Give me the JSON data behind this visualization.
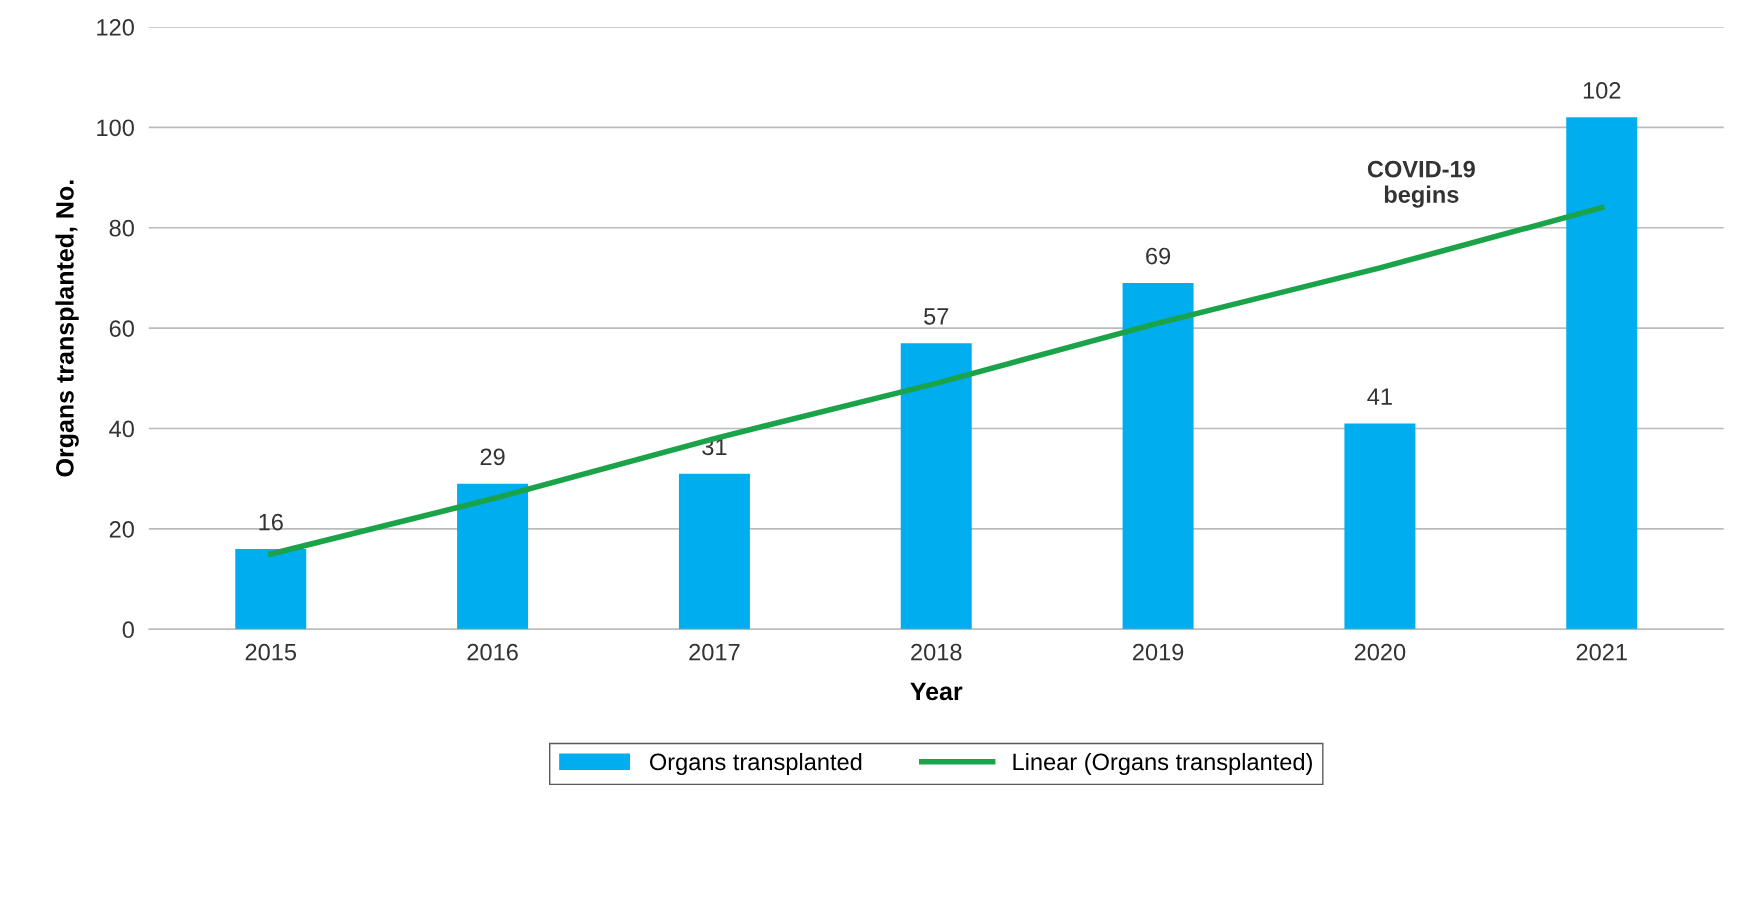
{
  "chart_data": {
    "type": "bar",
    "xlabel": "Year",
    "ylabel": "Organs transplanted, No.",
    "categories": [
      "2015",
      "2016",
      "2017",
      "2018",
      "2019",
      "2020",
      "2021"
    ],
    "series": [
      {
        "name": "Organs transplanted",
        "color": "#00aeef",
        "values": [
          16,
          29,
          31,
          57,
          69,
          41,
          102
        ],
        "value_labels": [
          "16",
          "29",
          "31",
          "57",
          "69",
          "41",
          "102"
        ]
      },
      {
        "name": "Linear (Organs transplanted)",
        "type": "line",
        "color": "#1ba34a",
        "values": [
          15,
          26,
          38,
          49,
          61,
          72,
          84
        ]
      }
    ],
    "ylim": [
      0,
      120
    ],
    "yticks": [
      0,
      20,
      40,
      60,
      80,
      100,
      120
    ],
    "grid": "y",
    "legend": "bottom",
    "marker": "none",
    "line_style": "solid",
    "annotations": [
      "COVID-19\nbegins"
    ]
  }
}
